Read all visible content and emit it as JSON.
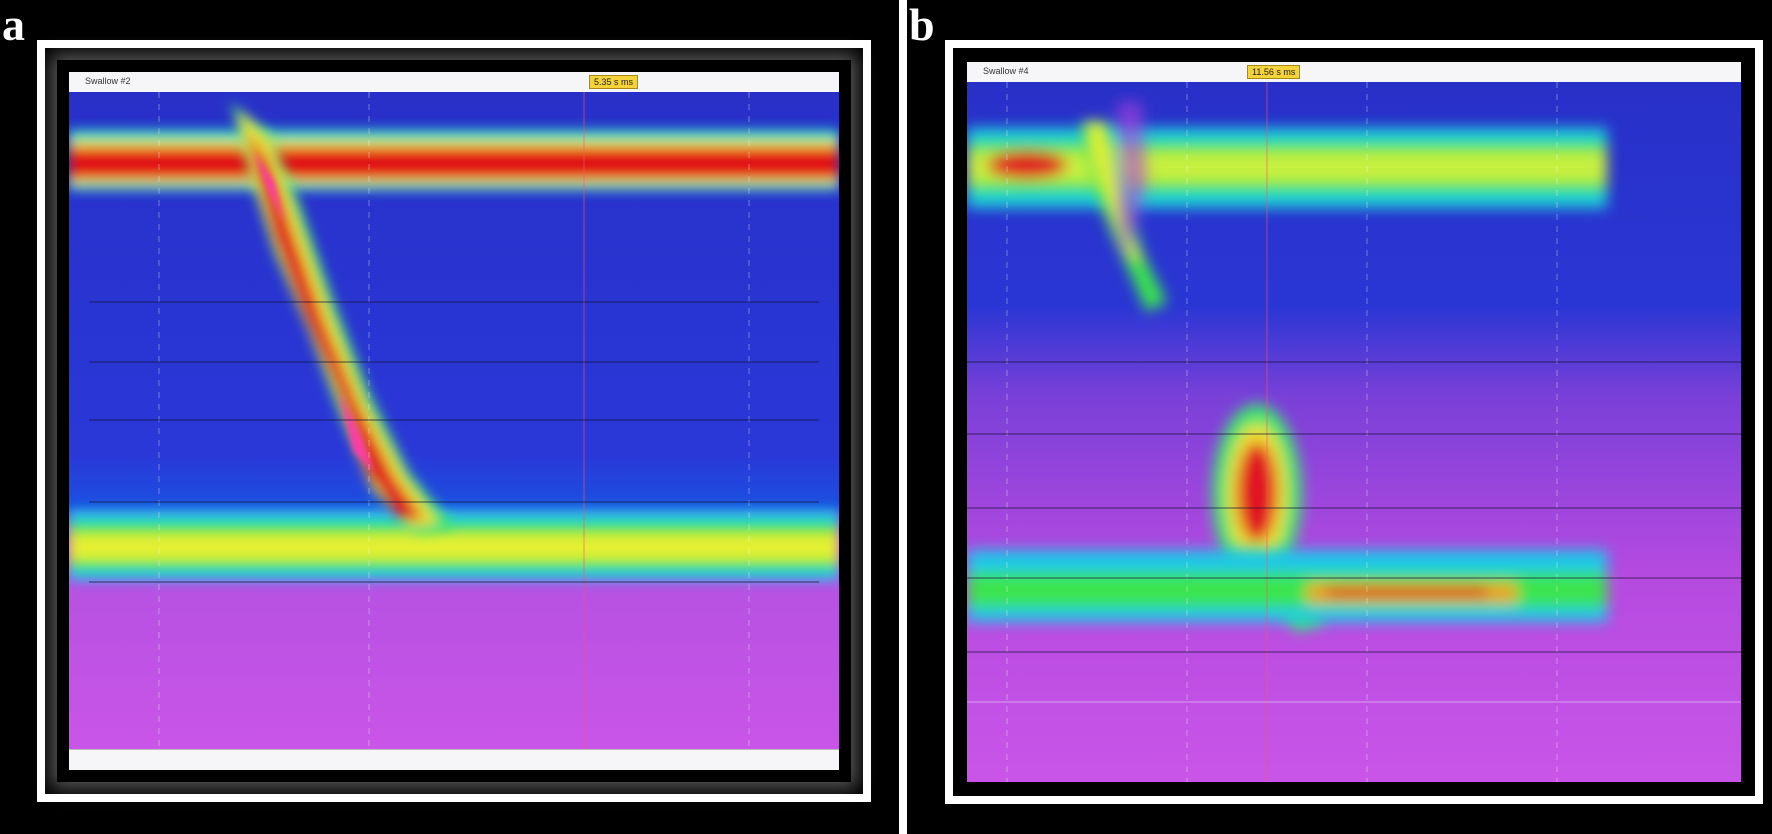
{
  "panels": [
    {
      "letter": "a",
      "window_label": "Swallow #2",
      "readout": "5.35 s ms"
    },
    {
      "letter": "b",
      "window_label": "Swallow #4",
      "readout": "11.56 s ms"
    }
  ],
  "colors": {
    "background": "#000000",
    "frame": "#ffffff",
    "low_pressure": "#2b2fd8",
    "mid_pressure": "#39e35a",
    "high_pressure": "#e8101a",
    "peak_pressure": "#ff3aa8",
    "baseline": "#c552e8"
  }
}
